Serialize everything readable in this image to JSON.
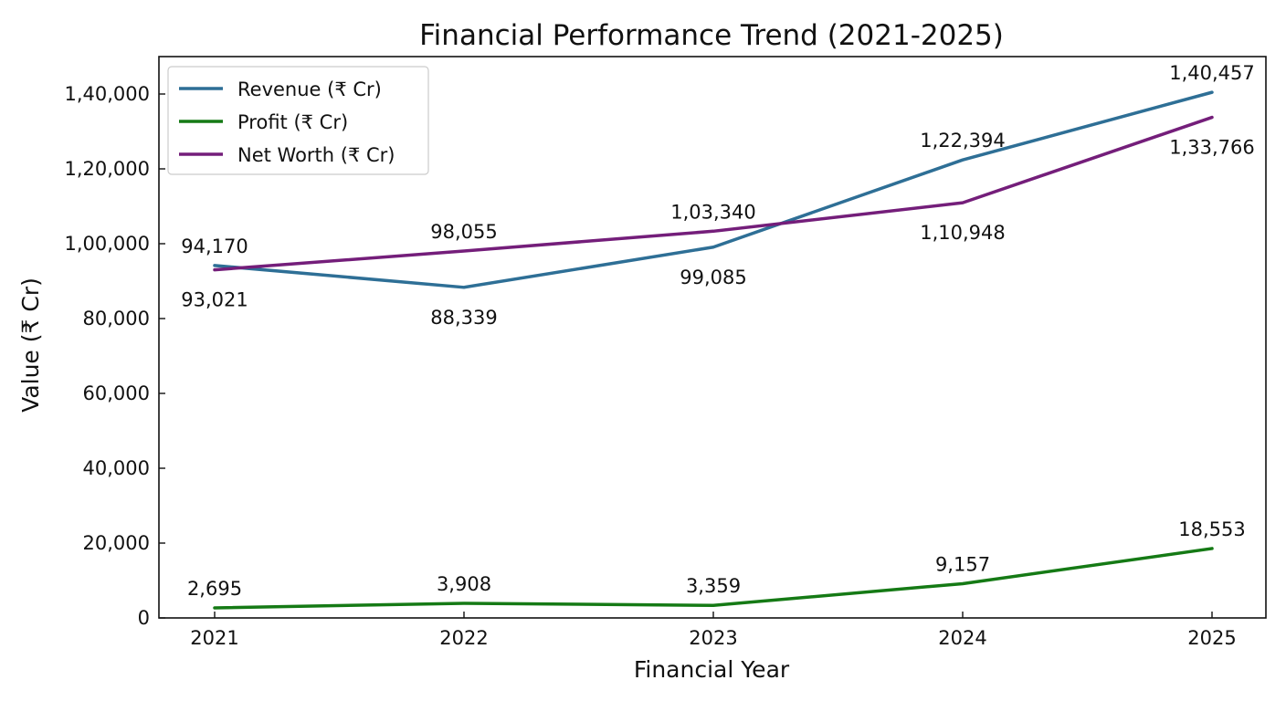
{
  "chart_data": {
    "type": "line",
    "title": "Financial Performance Trend (2021-2025)",
    "xlabel": "Financial Year",
    "ylabel": "Value (₹ Cr)",
    "categories": [
      "2021",
      "2022",
      "2023",
      "2024",
      "2025"
    ],
    "ylim": [
      0,
      150000
    ],
    "yticks": [
      0,
      20000,
      40000,
      60000,
      80000,
      100000,
      120000,
      140000
    ],
    "ytick_labels": [
      "0",
      "20,000",
      "40,000",
      "60,000",
      "80,000",
      "1,00,000",
      "1,20,000",
      "1,40,000"
    ],
    "grid": false,
    "legend_position": "top-left",
    "series": [
      {
        "name": "Revenue (₹ Cr)",
        "color": "#2e6f96",
        "values": [
          94170,
          88339,
          99085,
          122394,
          140457
        ],
        "labels": [
          "94,170",
          "88,339",
          "99,085",
          "1,22,394",
          "1,40,457"
        ],
        "label_position": [
          "above",
          "below",
          "below",
          "above",
          "above"
        ]
      },
      {
        "name": "Profit (₹ Cr)",
        "color": "#157a15",
        "values": [
          2695,
          3908,
          3359,
          9157,
          18553
        ],
        "labels": [
          "2,695",
          "3,908",
          "3,359",
          "9,157",
          "18,553"
        ],
        "label_position": [
          "above",
          "above",
          "above",
          "above",
          "above"
        ]
      },
      {
        "name": "Net Worth (₹ Cr)",
        "color": "#741e7a",
        "values": [
          93021,
          98055,
          103340,
          110948,
          133766
        ],
        "labels": [
          "93,021",
          "98,055",
          "1,03,340",
          "1,10,948",
          "1,33,766"
        ],
        "label_position": [
          "below",
          "above",
          "above",
          "below",
          "below"
        ]
      }
    ]
  }
}
